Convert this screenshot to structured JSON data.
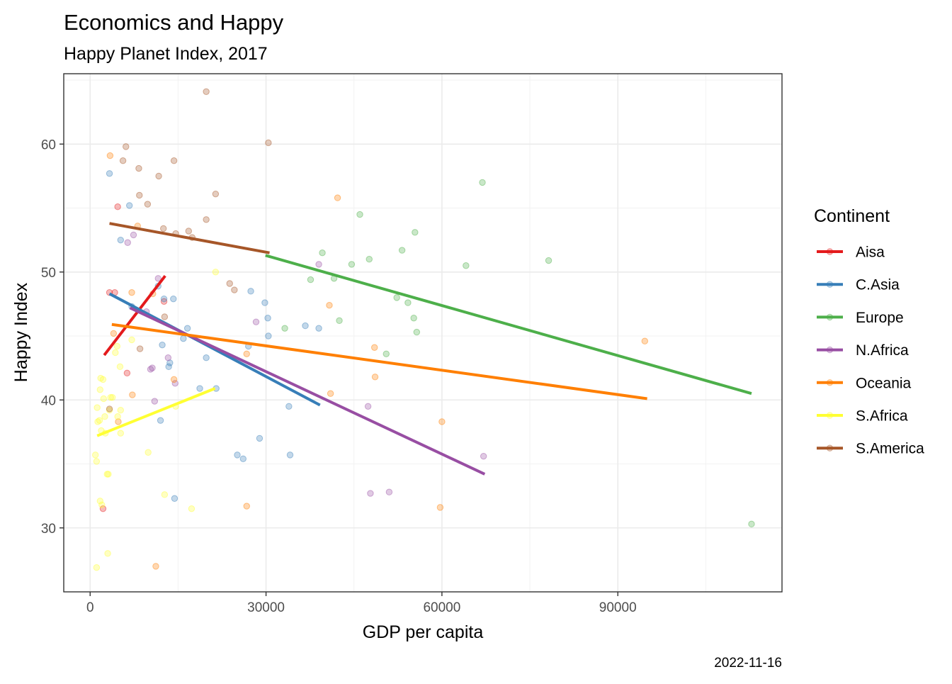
{
  "chart_data": {
    "type": "scatter",
    "title": "Economics and Happy",
    "subtitle": "Happy Planet Index, 2017",
    "xlabel": "GDP per capita",
    "ylabel": "Happy Index",
    "caption": "2022-11-16",
    "xlim": [
      -4500,
      118000
    ],
    "ylim": [
      25,
      65.5
    ],
    "x_ticks": [
      0,
      30000,
      60000,
      90000
    ],
    "x_tick_labels": [
      "0",
      "30000",
      "60000",
      "90000"
    ],
    "y_ticks": [
      30,
      40,
      50,
      60
    ],
    "y_tick_labels": [
      "30",
      "40",
      "50",
      "60"
    ],
    "grid": true,
    "legend": {
      "title": "Continent",
      "position": "right"
    },
    "series": [
      {
        "name": "Aisa",
        "color": "#E41A1C",
        "trend": [
          [
            2400,
            43.5
          ],
          [
            12800,
            49.7
          ]
        ],
        "points": [
          [
            3300,
            48.4
          ],
          [
            4200,
            48.4
          ],
          [
            4700,
            55.1
          ],
          [
            6300,
            42.1
          ],
          [
            12600,
            47.7
          ],
          [
            2200,
            31.5
          ]
        ]
      },
      {
        "name": "C.Asia",
        "color": "#377EB8",
        "trend": [
          [
            3300,
            48.3
          ],
          [
            39200,
            39.6
          ]
        ],
        "points": [
          [
            3300,
            57.7
          ],
          [
            5200,
            52.5
          ],
          [
            6700,
            55.2
          ],
          [
            7100,
            47.3
          ],
          [
            11600,
            48.9
          ],
          [
            12300,
            44.3
          ],
          [
            12600,
            47.9
          ],
          [
            13400,
            42.6
          ],
          [
            14200,
            47.9
          ],
          [
            13600,
            42.9
          ],
          [
            15900,
            44.8
          ],
          [
            16600,
            45.6
          ],
          [
            18700,
            40.9
          ],
          [
            19800,
            43.3
          ],
          [
            21500,
            40.9
          ],
          [
            25100,
            35.7
          ],
          [
            26100,
            35.4
          ],
          [
            27000,
            44.2
          ],
          [
            27400,
            48.5
          ],
          [
            28900,
            37.0
          ],
          [
            29800,
            47.6
          ],
          [
            30300,
            46.4
          ],
          [
            30400,
            45.0
          ],
          [
            33900,
            39.5
          ],
          [
            34100,
            35.7
          ],
          [
            36700,
            45.8
          ],
          [
            39000,
            45.6
          ],
          [
            12000,
            38.4
          ],
          [
            14400,
            32.3
          ]
        ]
      },
      {
        "name": "Europe",
        "color": "#4DAF4A",
        "trend": [
          [
            29900,
            51.3
          ],
          [
            112800,
            40.5
          ]
        ],
        "points": [
          [
            33200,
            45.6
          ],
          [
            37600,
            49.4
          ],
          [
            39600,
            51.5
          ],
          [
            41600,
            49.5
          ],
          [
            42500,
            46.2
          ],
          [
            44600,
            50.6
          ],
          [
            46000,
            54.5
          ],
          [
            47600,
            51.0
          ],
          [
            50500,
            43.6
          ],
          [
            52300,
            48.0
          ],
          [
            53200,
            51.7
          ],
          [
            54200,
            47.6
          ],
          [
            55200,
            46.4
          ],
          [
            55400,
            53.1
          ],
          [
            55700,
            45.3
          ],
          [
            64100,
            50.5
          ],
          [
            66900,
            57.0
          ],
          [
            78200,
            50.9
          ],
          [
            112800,
            30.3
          ]
        ]
      },
      {
        "name": "N.Africa",
        "color": "#984EA3",
        "trend": [
          [
            6800,
            47.2
          ],
          [
            67300,
            34.2
          ]
        ],
        "points": [
          [
            6400,
            52.3
          ],
          [
            7400,
            52.9
          ],
          [
            9600,
            46.9
          ],
          [
            10300,
            42.4
          ],
          [
            10600,
            42.5
          ],
          [
            11000,
            39.9
          ],
          [
            11600,
            49.5
          ],
          [
            13300,
            43.3
          ],
          [
            14500,
            41.3
          ],
          [
            28300,
            46.1
          ],
          [
            39000,
            50.6
          ],
          [
            47400,
            39.5
          ],
          [
            47800,
            32.7
          ],
          [
            51000,
            32.8
          ],
          [
            67100,
            35.6
          ]
        ]
      },
      {
        "name": "Oceania",
        "color": "#FF7F00",
        "trend": [
          [
            3700,
            45.9
          ],
          [
            95000,
            40.1
          ]
        ],
        "points": [
          [
            3400,
            59.1
          ],
          [
            4000,
            45.2
          ],
          [
            4800,
            38.3
          ],
          [
            7100,
            48.4
          ],
          [
            7200,
            40.4
          ],
          [
            8100,
            53.6
          ],
          [
            10700,
            48.3
          ],
          [
            11200,
            27.0
          ],
          [
            14300,
            41.6
          ],
          [
            26700,
            43.6
          ],
          [
            26700,
            31.7
          ],
          [
            40800,
            47.4
          ],
          [
            41000,
            40.5
          ],
          [
            42200,
            55.8
          ],
          [
            48500,
            44.1
          ],
          [
            48600,
            41.8
          ],
          [
            59700,
            31.6
          ],
          [
            60000,
            38.3
          ],
          [
            94600,
            44.6
          ]
        ]
      },
      {
        "name": "S.Africa",
        "color": "#FFFF33",
        "trend": [
          [
            1200,
            37.2
          ],
          [
            21300,
            40.9
          ]
        ],
        "points": [
          [
            900,
            35.7
          ],
          [
            1100,
            26.9
          ],
          [
            1100,
            35.2
          ],
          [
            1200,
            39.4
          ],
          [
            1300,
            38.3
          ],
          [
            1600,
            38.4
          ],
          [
            1700,
            32.1
          ],
          [
            1700,
            40.8
          ],
          [
            1800,
            41.7
          ],
          [
            1900,
            37.6
          ],
          [
            2000,
            31.8
          ],
          [
            2200,
            41.6
          ],
          [
            2300,
            40.1
          ],
          [
            2500,
            38.7
          ],
          [
            2600,
            37.4
          ],
          [
            2900,
            34.2
          ],
          [
            3000,
            28.0
          ],
          [
            3100,
            34.2
          ],
          [
            3300,
            39.2
          ],
          [
            3500,
            40.2
          ],
          [
            3800,
            40.2
          ],
          [
            4300,
            43.7
          ],
          [
            4600,
            44.2
          ],
          [
            4700,
            38.7
          ],
          [
            5100,
            42.6
          ],
          [
            5200,
            39.2
          ],
          [
            5200,
            37.4
          ],
          [
            7100,
            44.7
          ],
          [
            9900,
            35.9
          ],
          [
            12700,
            32.6
          ],
          [
            14600,
            39.5
          ],
          [
            17300,
            31.5
          ],
          [
            21400,
            50.0
          ]
        ]
      },
      {
        "name": "S.America",
        "color": "#A65628",
        "trend": [
          [
            3300,
            53.8
          ],
          [
            30600,
            51.5
          ]
        ],
        "points": [
          [
            3300,
            39.3
          ],
          [
            5600,
            58.7
          ],
          [
            6100,
            59.8
          ],
          [
            8300,
            58.1
          ],
          [
            8400,
            56.0
          ],
          [
            8500,
            44.0
          ],
          [
            9800,
            55.3
          ],
          [
            11700,
            57.5
          ],
          [
            12500,
            53.4
          ],
          [
            12700,
            46.5
          ],
          [
            14300,
            58.7
          ],
          [
            14600,
            53.0
          ],
          [
            16800,
            53.2
          ],
          [
            17400,
            52.7
          ],
          [
            19800,
            64.1
          ],
          [
            19800,
            54.1
          ],
          [
            21400,
            56.1
          ],
          [
            23800,
            49.1
          ],
          [
            24600,
            48.6
          ],
          [
            30400,
            60.1
          ]
        ]
      }
    ]
  }
}
